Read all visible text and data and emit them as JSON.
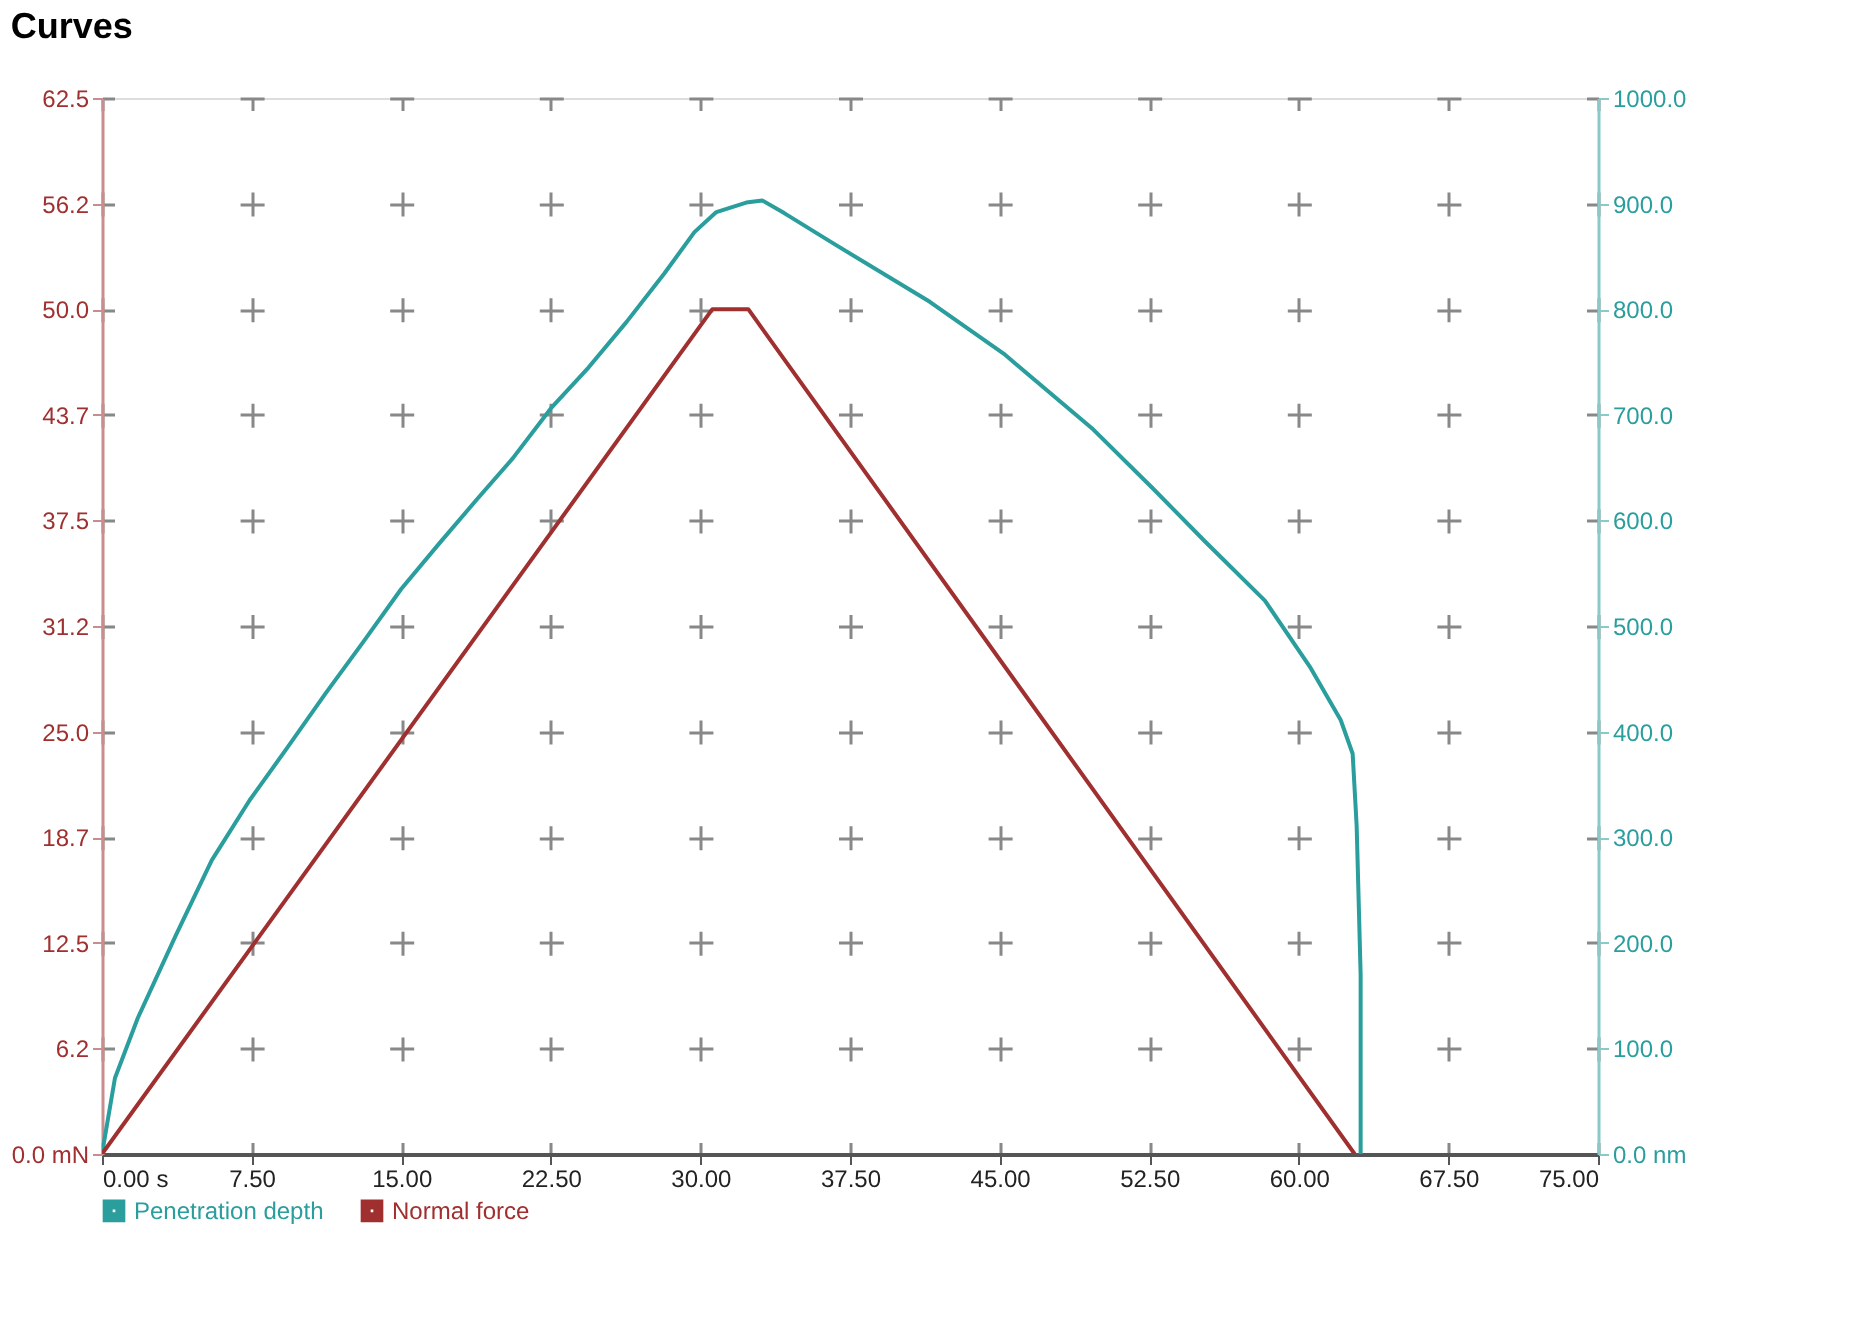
{
  "chart_data": {
    "type": "line",
    "title": "Curves",
    "xlim": [
      0,
      75
    ],
    "xticks": [
      {
        "value": 0,
        "label": "0.00 s"
      },
      {
        "value": 7.5,
        "label": "7.50"
      },
      {
        "value": 15,
        "label": "15.00"
      },
      {
        "value": 22.5,
        "label": "22.50"
      },
      {
        "value": 30,
        "label": "30.00"
      },
      {
        "value": 37.5,
        "label": "37.50"
      },
      {
        "value": 45,
        "label": "45.00"
      },
      {
        "value": 52.5,
        "label": "52.50"
      },
      {
        "value": 60,
        "label": "60.00"
      },
      {
        "value": 67.5,
        "label": "67.50"
      },
      {
        "value": 75,
        "label": "75.00"
      }
    ],
    "ylim": [
      0,
      62.5
    ],
    "yticks": [
      {
        "value": 0,
        "label": "0.0 mN"
      },
      {
        "value": 6.25,
        "label": "6.2"
      },
      {
        "value": 12.5,
        "label": "12.5"
      },
      {
        "value": 18.75,
        "label": "18.7"
      },
      {
        "value": 25,
        "label": "25.0"
      },
      {
        "value": 31.25,
        "label": "31.2"
      },
      {
        "value": 37.5,
        "label": "37.5"
      },
      {
        "value": 43.75,
        "label": "43.7"
      },
      {
        "value": 50,
        "label": "50.0"
      },
      {
        "value": 56.25,
        "label": "56.2"
      },
      {
        "value": 62.5,
        "label": "62.5"
      }
    ],
    "y2lim": [
      0,
      1000
    ],
    "y2ticks": [
      {
        "value": 0,
        "label": "0.0 nm"
      },
      {
        "value": 100,
        "label": "100.0"
      },
      {
        "value": 200,
        "label": "200.0"
      },
      {
        "value": 300,
        "label": "300.0"
      },
      {
        "value": 400,
        "label": "400.0"
      },
      {
        "value": 500,
        "label": "500.0"
      },
      {
        "value": 600,
        "label": "600.0"
      },
      {
        "value": 700,
        "label": "700.0"
      },
      {
        "value": 800,
        "label": "800.0"
      },
      {
        "value": 900,
        "label": "900.0"
      },
      {
        "value": 1000,
        "label": "1000.0"
      }
    ],
    "grid": true,
    "legend": "bottom left",
    "series": [
      {
        "name": "Penetration depth",
        "color": "#2a9d9d",
        "axis": "y2",
        "x": [
          0,
          0.65,
          1.8,
          3.7,
          5.5,
          7.4,
          9.3,
          11.2,
          13.1,
          15.0,
          16.9,
          18.8,
          20.6,
          22.5,
          24.4,
          26.3,
          28.2,
          29.7,
          30.8,
          32.3,
          33.1,
          34.2,
          36.6,
          41.5,
          45.2,
          49.7,
          52.7,
          55.3,
          58.3,
          60.6,
          62.1,
          62.7,
          62.9,
          63.1,
          63.1
        ],
        "values": [
          0,
          72,
          129,
          207,
          278,
          335,
          385,
          436,
          485,
          535,
          578,
          620,
          659,
          706,
          745,
          788,
          834,
          873,
          892,
          901,
          903,
          891,
          863,
          807,
          758,
          686,
          630,
          580,
          524,
          460,
          411,
          379,
          311,
          170,
          0
        ]
      },
      {
        "name": "Normal force",
        "color": "#a03030",
        "x": [
          0,
          30.6,
          32.4,
          62.8
        ],
        "values": [
          0,
          50,
          50,
          0
        ]
      }
    ]
  }
}
